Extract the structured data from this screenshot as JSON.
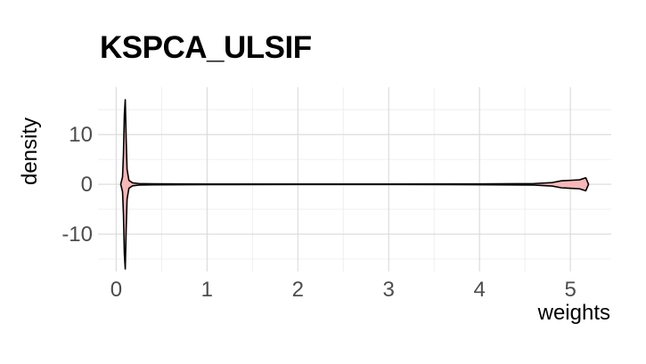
{
  "chart_data": {
    "type": "violin",
    "title": "KSPCA_ULSIF",
    "xlabel": "weights",
    "ylabel": "density",
    "xlim": [
      -0.2,
      5.45
    ],
    "ylim": [
      -17.5,
      19.5
    ],
    "x_ticks": [
      0,
      1,
      2,
      3,
      4,
      5
    ],
    "y_ticks": [
      -10,
      0,
      10
    ],
    "x_tick_labels": [
      "0",
      "1",
      "2",
      "3",
      "4",
      "5"
    ],
    "y_tick_labels": [
      "-10",
      "0",
      "10"
    ],
    "grid": true,
    "legend": "none",
    "fill_color": "#F8B8B8",
    "line_color": "#000000",
    "density_profile": {
      "x": [
        0.05,
        0.07,
        0.08,
        0.09,
        0.1,
        0.11,
        0.12,
        0.14,
        0.18,
        0.25,
        0.4,
        1.0,
        2.0,
        3.0,
        4.0,
        4.6,
        4.8,
        4.9,
        5.0,
        5.1,
        5.17,
        5.2
      ],
      "density": [
        0.0,
        1.5,
        6.0,
        14.0,
        17.0,
        9.0,
        3.0,
        0.8,
        0.3,
        0.15,
        0.1,
        0.06,
        0.05,
        0.05,
        0.08,
        0.15,
        0.35,
        0.7,
        0.8,
        0.9,
        1.3,
        0.0
      ]
    }
  }
}
